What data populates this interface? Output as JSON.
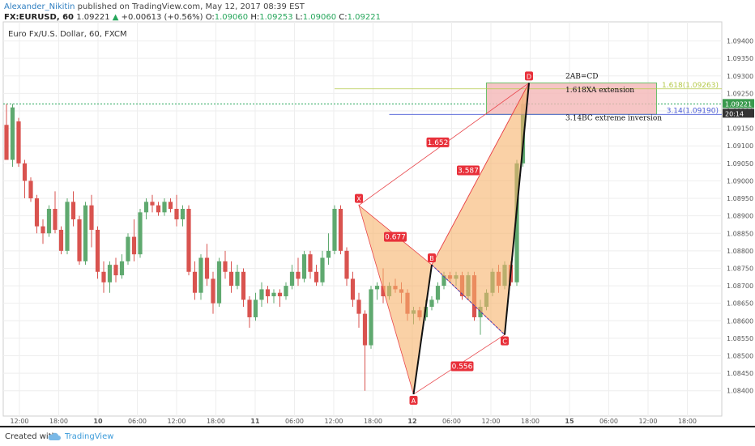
{
  "header": {
    "author": "Alexander_Nikitin",
    "published_text": "published on TradingView.com, May 12, 2017 08:39 EST",
    "symbol": "FX:EURUSD, 60",
    "last_price": "1.09221",
    "change": "+0.00613 (+0.56%)",
    "open_label": "O:",
    "open_value": "1.09060",
    "high_label": "H:",
    "high_value": "1.09253",
    "low_label": "L:",
    "low_value": "1.09060",
    "close_label": "C:",
    "close_value": "1.09221"
  },
  "colors": {
    "bull": "#5fa96f",
    "bear": "#d9534f",
    "pattern_fill": "#f6b26b",
    "pattern_line": "#e8454a",
    "box_fill": "#f4b6b6",
    "box_border": "#6cc06c"
  },
  "footer": {
    "created_with": "Created with",
    "brand": "TradingView",
    "brand_icon": "cloud-icon"
  },
  "chart_data": {
    "type": "candlestick",
    "title": "Euro Fx/U.S. Dollar, 60, FXCM",
    "ylim": [
      1.0836,
      1.0948
    ],
    "y_ticks": [
      "1.09400",
      "1.09350",
      "1.09300",
      "1.09250",
      "1.09200",
      "1.09150",
      "1.09100",
      "1.09050",
      "1.09000",
      "1.08950",
      "1.08900",
      "1.08850",
      "1.08800",
      "1.08750",
      "1.08700",
      "1.08650",
      "1.08600",
      "1.08550",
      "1.08500",
      "1.08450",
      "1.08400"
    ],
    "x_ticks": [
      "12:00",
      "18:00",
      "10",
      "06:00",
      "12:00",
      "18:00",
      "11",
      "06:00",
      "12:00",
      "18:00",
      "12",
      "06:00",
      "12:00",
      "18:00",
      "15",
      "06:00",
      "12:00",
      "18:00"
    ],
    "last_price_label": "1.09221",
    "countdown_label": "20:14",
    "candles": [
      [
        1.0916,
        1.0922,
        1.0906,
        1.0906
      ],
      [
        1.0906,
        1.0922,
        1.0904,
        1.0921
      ],
      [
        1.0917,
        1.0918,
        1.0904,
        1.0905
      ],
      [
        1.0905,
        1.0906,
        1.0895,
        1.09
      ],
      [
        1.09,
        1.0901,
        1.0894,
        1.0895
      ],
      [
        1.0895,
        1.0896,
        1.0885,
        1.0887
      ],
      [
        1.0887,
        1.0889,
        1.0882,
        1.0885
      ],
      [
        1.0885,
        1.0893,
        1.0884,
        1.0892
      ],
      [
        1.0892,
        1.0897,
        1.0885,
        1.0886
      ],
      [
        1.0886,
        1.0887,
        1.0879,
        1.088
      ],
      [
        1.088,
        1.0895,
        1.0879,
        1.0894
      ],
      [
        1.0894,
        1.0897,
        1.0887,
        1.0889
      ],
      [
        1.0889,
        1.089,
        1.0876,
        1.0877
      ],
      [
        1.0877,
        1.0894,
        1.0876,
        1.0893
      ],
      [
        1.0893,
        1.0896,
        1.0881,
        1.0886
      ],
      [
        1.0886,
        1.0887,
        1.0872,
        1.0874
      ],
      [
        1.0874,
        1.0877,
        1.0868,
        1.0871
      ],
      [
        1.0871,
        1.0877,
        1.0868,
        1.0876
      ],
      [
        1.0876,
        1.0878,
        1.0871,
        1.0873
      ],
      [
        1.0873,
        1.0879,
        1.0872,
        1.0877
      ],
      [
        1.0877,
        1.0885,
        1.0876,
        1.0884
      ],
      [
        1.0884,
        1.0889,
        1.0877,
        1.0879
      ],
      [
        1.0879,
        1.0892,
        1.0878,
        1.0891
      ],
      [
        1.0891,
        1.0895,
        1.0889,
        1.0894
      ],
      [
        1.0894,
        1.0896,
        1.0891,
        1.0893
      ],
      [
        1.0893,
        1.0894,
        1.089,
        1.0891
      ],
      [
        1.0891,
        1.0895,
        1.089,
        1.0894
      ],
      [
        1.0894,
        1.0895,
        1.0891,
        1.0892
      ],
      [
        1.0892,
        1.0896,
        1.0887,
        1.0889
      ],
      [
        1.0889,
        1.0893,
        1.0887,
        1.0892
      ],
      [
        1.0892,
        1.0893,
        1.0873,
        1.0874
      ],
      [
        1.0874,
        1.0877,
        1.0866,
        1.0868
      ],
      [
        1.0868,
        1.0879,
        1.0866,
        1.0878
      ],
      [
        1.0878,
        1.0882,
        1.087,
        1.0872
      ],
      [
        1.0872,
        1.0874,
        1.0862,
        1.0865
      ],
      [
        1.0865,
        1.0878,
        1.0864,
        1.0877
      ],
      [
        1.0877,
        1.088,
        1.0872,
        1.0874
      ],
      [
        1.0874,
        1.0877,
        1.0868,
        1.087
      ],
      [
        1.087,
        1.0876,
        1.0869,
        1.0874
      ],
      [
        1.0874,
        1.0875,
        1.0864,
        1.0866
      ],
      [
        1.0866,
        1.0867,
        1.0858,
        1.0861
      ],
      [
        1.0861,
        1.0868,
        1.086,
        1.0866
      ],
      [
        1.0866,
        1.0871,
        1.0864,
        1.0869
      ],
      [
        1.0869,
        1.087,
        1.0865,
        1.0867
      ],
      [
        1.0867,
        1.0869,
        1.0865,
        1.0868
      ],
      [
        1.0868,
        1.0869,
        1.0864,
        1.0867
      ],
      [
        1.0867,
        1.0871,
        1.0866,
        1.087
      ],
      [
        1.087,
        1.0876,
        1.0869,
        1.0874
      ],
      [
        1.0874,
        1.0878,
        1.087,
        1.0872
      ],
      [
        1.0872,
        1.088,
        1.0871,
        1.0879
      ],
      [
        1.0879,
        1.088,
        1.0872,
        1.0874
      ],
      [
        1.0874,
        1.0876,
        1.087,
        1.0871
      ],
      [
        1.0871,
        1.088,
        1.087,
        1.0878
      ],
      [
        1.0878,
        1.0885,
        1.0876,
        1.088
      ],
      [
        1.088,
        1.0893,
        1.0879,
        1.0892
      ],
      [
        1.0892,
        1.0893,
        1.0879,
        1.088
      ],
      [
        1.088,
        1.0881,
        1.087,
        1.0872
      ],
      [
        1.0872,
        1.0874,
        1.0864,
        1.0866
      ],
      [
        1.0866,
        1.0868,
        1.0858,
        1.0862
      ],
      [
        1.0862,
        1.0863,
        1.084,
        1.0853
      ],
      [
        1.0853,
        1.087,
        1.0852,
        1.0869
      ],
      [
        1.0869,
        1.0871,
        1.0866,
        1.087
      ],
      [
        1.087,
        1.0875,
        1.0865,
        1.0867
      ],
      [
        1.0867,
        1.0871,
        1.0866,
        1.087
      ],
      [
        1.087,
        1.0872,
        1.0868,
        1.0869
      ],
      [
        1.0869,
        1.0871,
        1.0865,
        1.0868
      ],
      [
        1.0868,
        1.0869,
        1.086,
        1.0862
      ],
      [
        1.0862,
        1.0864,
        1.0859,
        1.0863
      ],
      [
        1.0863,
        1.0864,
        1.086,
        1.0861
      ],
      [
        1.0861,
        1.0866,
        1.086,
        1.0864
      ],
      [
        1.0864,
        1.0867,
        1.0863,
        1.0866
      ],
      [
        1.0866,
        1.0871,
        1.0865,
        1.087
      ],
      [
        1.087,
        1.0874,
        1.0869,
        1.0873
      ],
      [
        1.0873,
        1.0874,
        1.0871,
        1.0872
      ],
      [
        1.0872,
        1.0874,
        1.087,
        1.0873
      ],
      [
        1.0873,
        1.0874,
        1.0866,
        1.0867
      ],
      [
        1.0867,
        1.0874,
        1.0866,
        1.0873
      ],
      [
        1.0873,
        1.0874,
        1.086,
        1.0861
      ],
      [
        1.0861,
        1.0866,
        1.0856,
        1.0864
      ],
      [
        1.0864,
        1.0869,
        1.0863,
        1.0868
      ],
      [
        1.0868,
        1.0875,
        1.0867,
        1.0874
      ],
      [
        1.0874,
        1.0876,
        1.0868,
        1.087
      ],
      [
        1.087,
        1.0877,
        1.0869,
        1.0876
      ],
      [
        1.0876,
        1.0877,
        1.087,
        1.0871
      ],
      [
        1.0871,
        1.0906,
        1.087,
        1.0905
      ],
      [
        1.0905,
        1.0925,
        1.0904,
        1.0922
      ]
    ],
    "pattern_points": [
      {
        "label": "X",
        "bar": 58,
        "price": 1.0893
      },
      {
        "label": "A",
        "bar": 67,
        "price": 1.0839
      },
      {
        "label": "B",
        "bar": 70,
        "price": 1.0876
      },
      {
        "label": "C",
        "bar": 82,
        "price": 1.0856
      },
      {
        "label": "D",
        "bar": 86,
        "price": 1.0928
      }
    ],
    "ratios": [
      {
        "label": "1.652",
        "bar": 71,
        "price": 1.0911
      },
      {
        "label": "0.677",
        "bar": 64,
        "price": 1.0884
      },
      {
        "label": "3.587",
        "bar": 76,
        "price": 1.0903
      },
      {
        "label": "0.556",
        "bar": 75,
        "price": 1.0847
      }
    ],
    "annotations": [
      {
        "text": "2AB=CD",
        "price": 1.093
      },
      {
        "text": "1.618XA extension",
        "price": 1.0926
      },
      {
        "text": "3.14BC extreme inversion",
        "price": 1.0918
      }
    ],
    "levels": [
      {
        "label": "1.618(1.09263)",
        "price": 1.09263
      },
      {
        "label": "3.14(1.09190)",
        "price": 1.0919
      }
    ],
    "zone": {
      "from_bar": 79,
      "to_bar": 107,
      "high": 1.0928,
      "low": 1.0919
    }
  }
}
